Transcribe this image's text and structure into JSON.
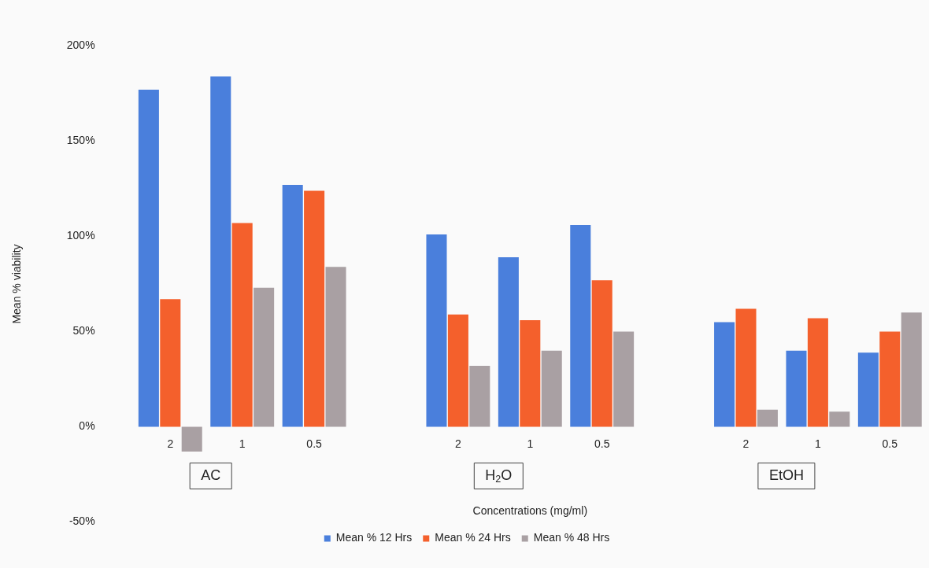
{
  "chart_data": {
    "type": "bar",
    "xlabel": "Concentrations (mg/ml)",
    "ylabel": "Mean % viability",
    "categories": [
      "2",
      "1",
      "0.5",
      null,
      "2",
      "1",
      "0.5",
      null,
      "2",
      "1",
      "0.5"
    ],
    "series": [
      {
        "name": "Mean % 12 Hrs",
        "color": "#4a7fdc",
        "values": [
          177,
          184,
          127,
          null,
          101,
          89,
          106,
          null,
          55,
          40,
          39
        ]
      },
      {
        "name": "Mean % 24 Hrs",
        "color": "#f4602c",
        "values": [
          67,
          107,
          124,
          null,
          59,
          56,
          77,
          null,
          62,
          57,
          50
        ]
      },
      {
        "name": "Mean % 48 Hrs",
        "color": "#a9a0a3",
        "values": [
          -13,
          73,
          84,
          null,
          32,
          40,
          50,
          null,
          9,
          8,
          60
        ]
      }
    ],
    "ylim": [
      -50,
      200
    ],
    "yticks": [
      {
        "value": -50,
        "label": "-50%"
      },
      {
        "value": 0,
        "label": "0%"
      },
      {
        "value": 50,
        "label": "50%"
      },
      {
        "value": 100,
        "label": "100%"
      },
      {
        "value": 150,
        "label": "150%"
      },
      {
        "value": 200,
        "label": "200%"
      }
    ],
    "annotations": [
      "AC",
      "H$_{2}$O",
      "EtOH"
    ],
    "grid": false,
    "legend": "bottom"
  }
}
